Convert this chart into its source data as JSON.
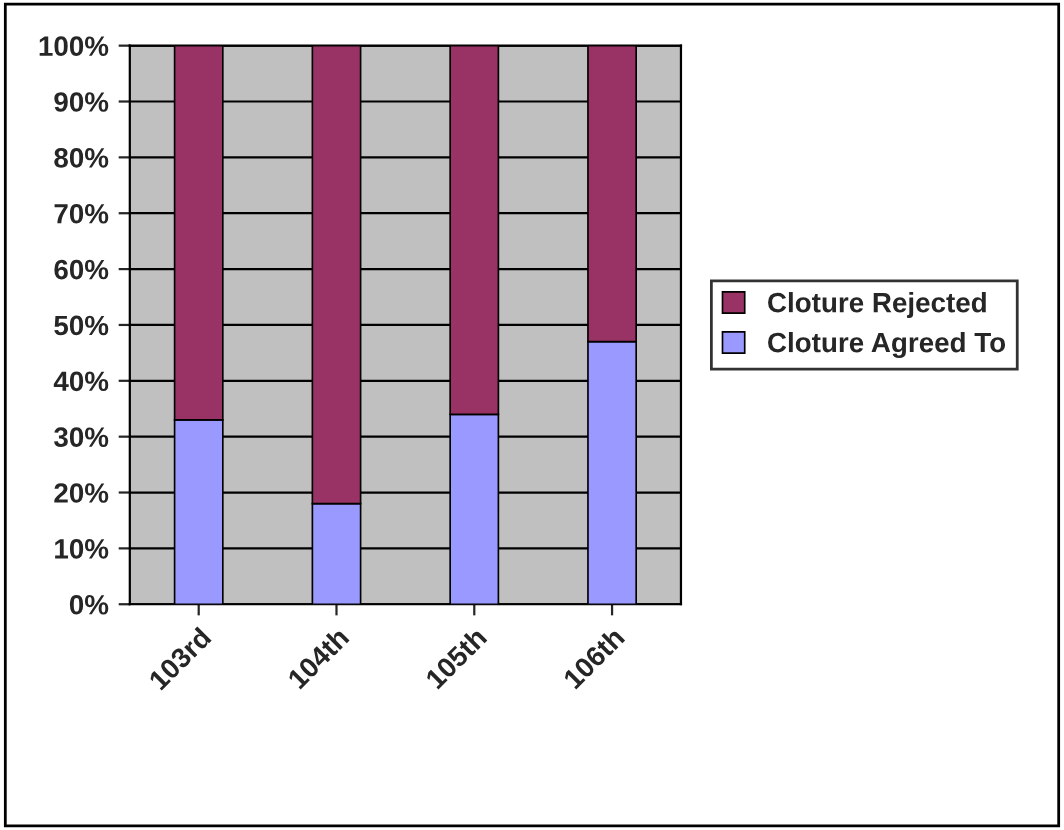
{
  "chart_data": {
    "type": "bar",
    "stacked": true,
    "categories": [
      "103rd",
      "104th",
      "105th",
      "106th"
    ],
    "series": [
      {
        "name": "Cloture Agreed To",
        "color": "#9999ff",
        "values": [
          33,
          18,
          34,
          47
        ]
      },
      {
        "name": "Cloture Rejected",
        "color": "#993366",
        "values": [
          67,
          82,
          66,
          53
        ]
      }
    ],
    "ylim": [
      0,
      100
    ],
    "yticks": [
      {
        "value": 0,
        "label": "0%"
      },
      {
        "value": 10,
        "label": "10%"
      },
      {
        "value": 20,
        "label": "20%"
      },
      {
        "value": 30,
        "label": "30%"
      },
      {
        "value": 40,
        "label": "40%"
      },
      {
        "value": 50,
        "label": "50%"
      },
      {
        "value": 60,
        "label": "60%"
      },
      {
        "value": 70,
        "label": "70%"
      },
      {
        "value": 80,
        "label": "80%"
      },
      {
        "value": 90,
        "label": "90%"
      },
      {
        "value": 100,
        "label": "100%"
      }
    ],
    "grid": "y",
    "legend": "right"
  }
}
